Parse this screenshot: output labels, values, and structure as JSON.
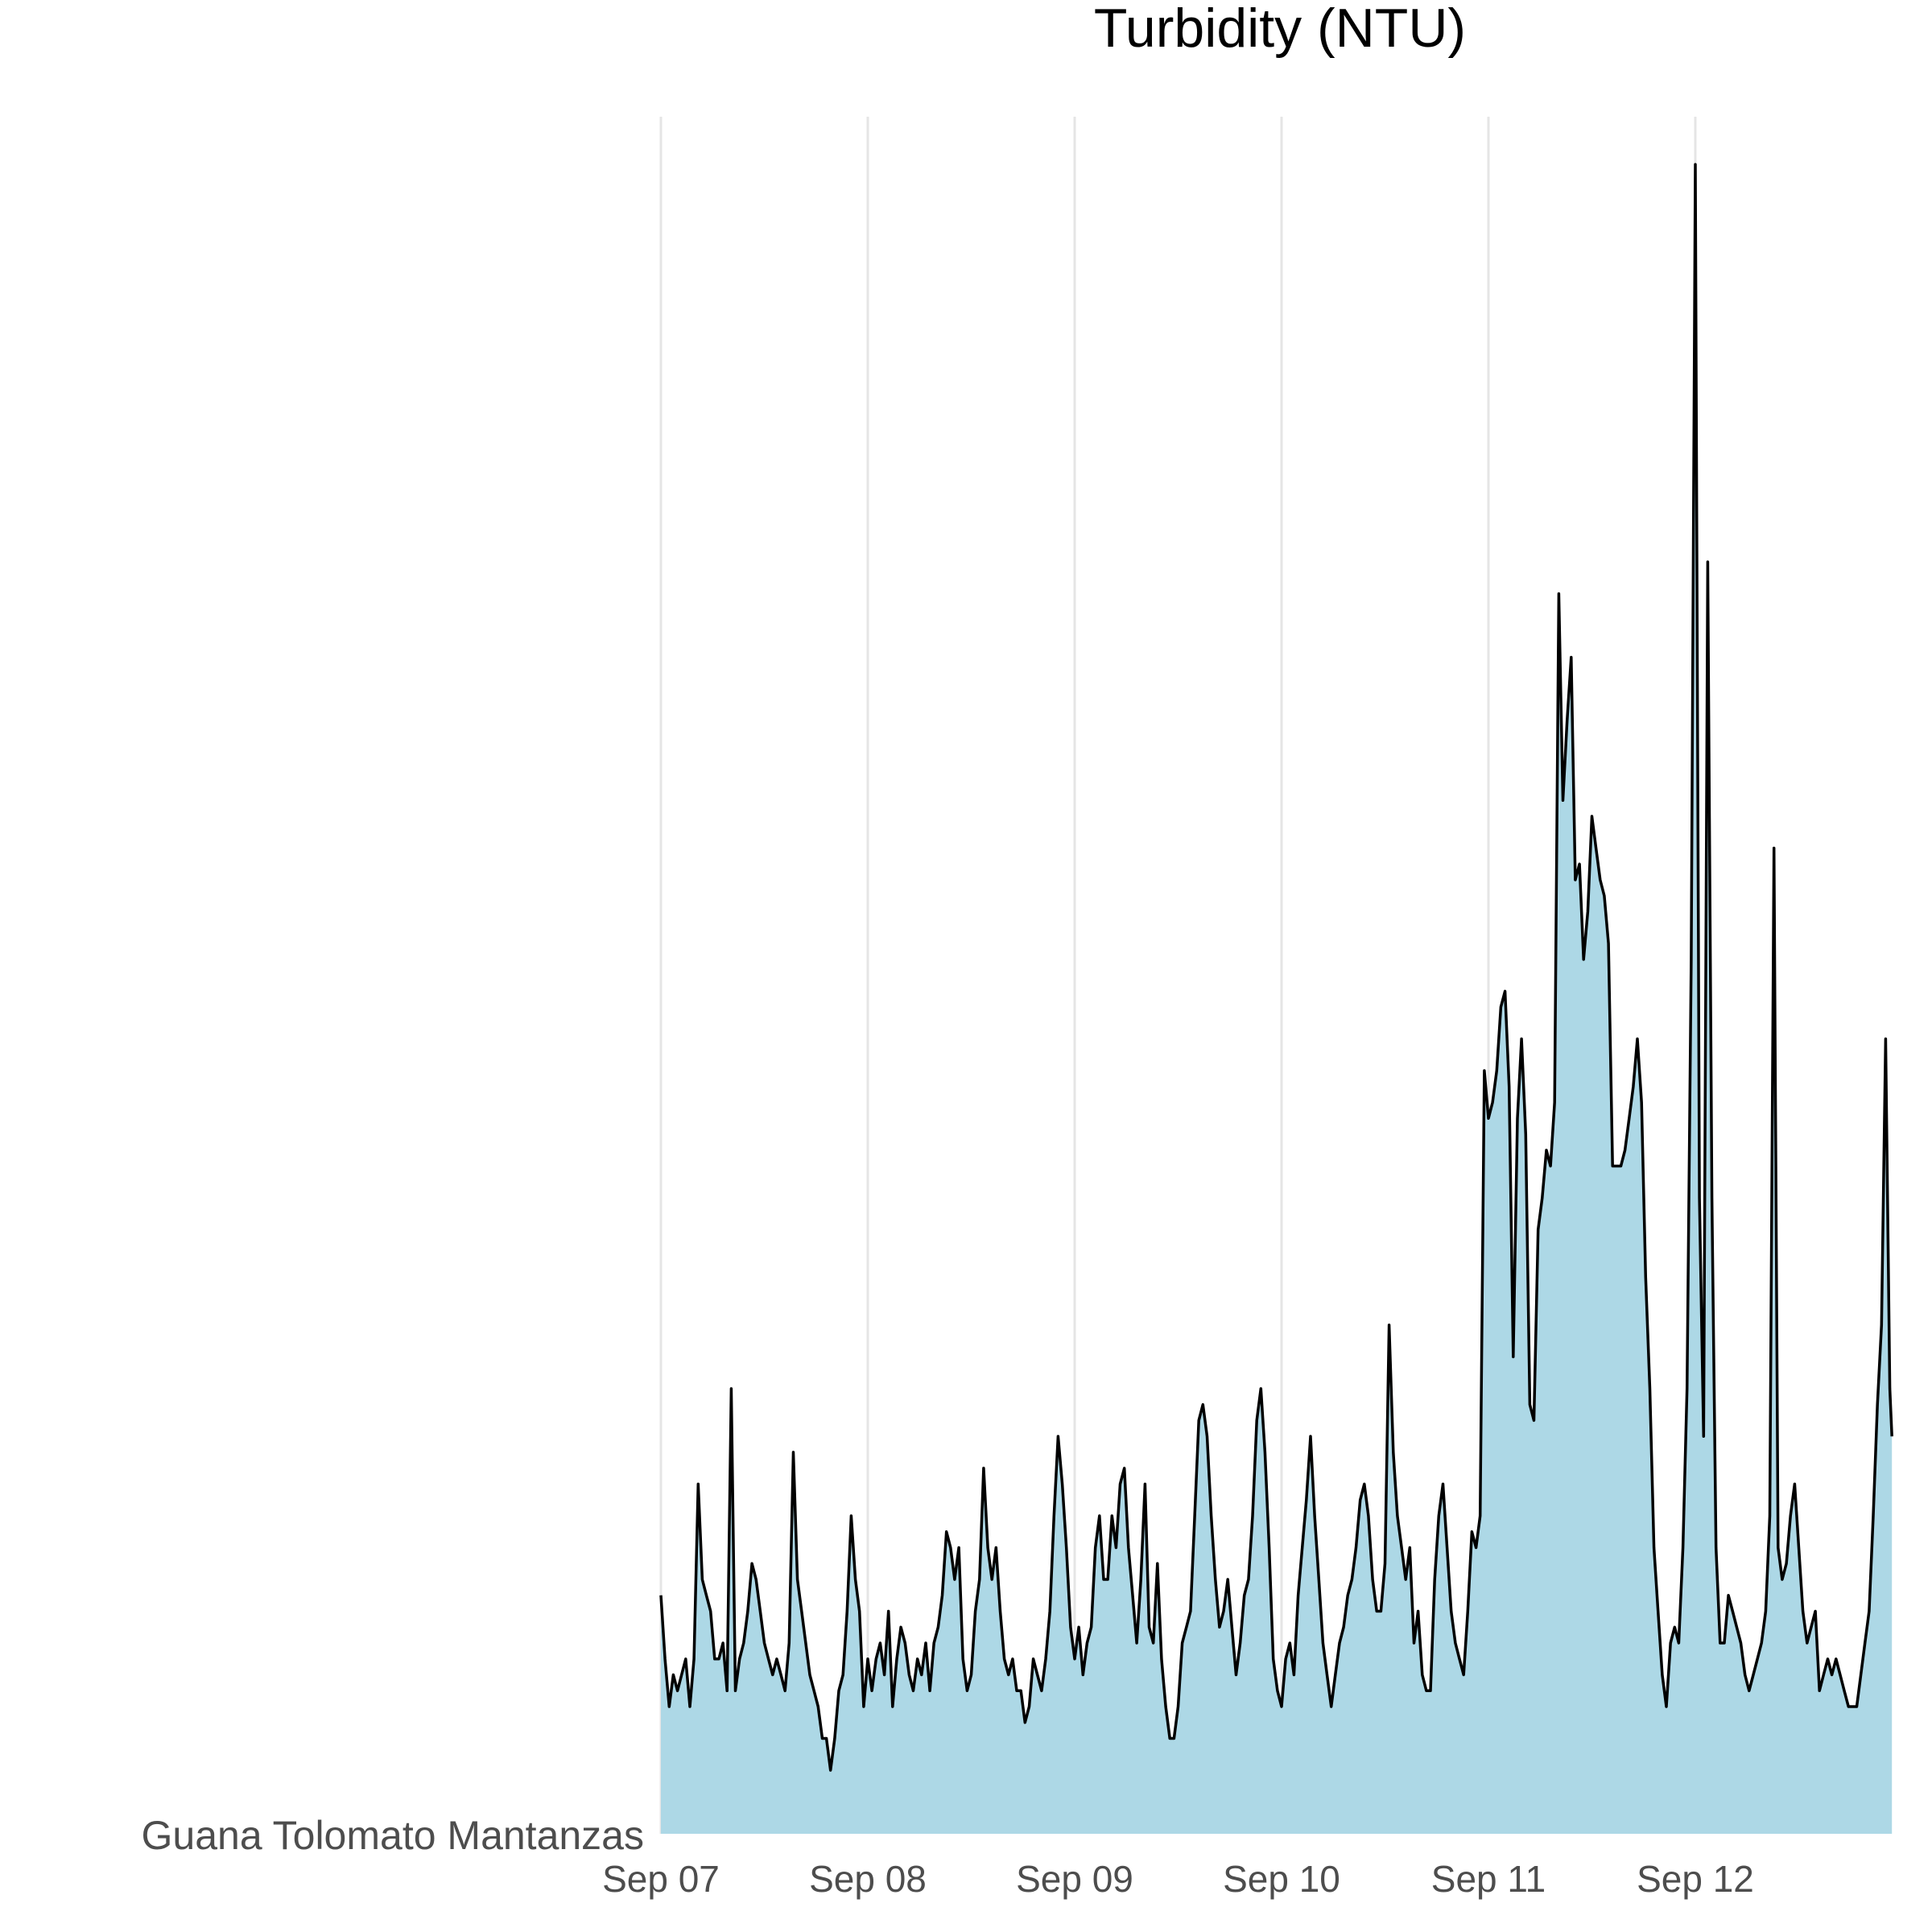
{
  "chart_data": {
    "type": "area",
    "title": "Turbidity (NTU)",
    "xlabel": "",
    "ylabel": "",
    "row_label": "Guana Tolomato Mantanzas",
    "x_tick_labels": [
      "Sep 07",
      "Sep 08",
      "Sep 09",
      "Sep 10",
      "Sep 11",
      "Sep 12"
    ],
    "x_tick_positions": [
      0,
      1,
      2,
      3,
      4,
      5
    ],
    "xlim": [
      0,
      5.95
    ],
    "ylim": [
      0,
      108
    ],
    "grid": {
      "vertical": true,
      "horizontal": false
    },
    "fill_color": "#add8e6",
    "line_color": "#000000",
    "series": [
      {
        "x": [
          0.0,
          0.02,
          0.04,
          0.06,
          0.08,
          0.1,
          0.12,
          0.14,
          0.16,
          0.18,
          0.2,
          0.22,
          0.24,
          0.26,
          0.28,
          0.3,
          0.32,
          0.34,
          0.36,
          0.38,
          0.4,
          0.42,
          0.44,
          0.46,
          0.48,
          0.5,
          0.52,
          0.54,
          0.56,
          0.58,
          0.6,
          0.62,
          0.64,
          0.66,
          0.68,
          0.7,
          0.72,
          0.74,
          0.76,
          0.78,
          0.8,
          0.82,
          0.84,
          0.86,
          0.88,
          0.9,
          0.92,
          0.94,
          0.96,
          0.98,
          1.0,
          1.02,
          1.04,
          1.06,
          1.08,
          1.1,
          1.12,
          1.14,
          1.16,
          1.18,
          1.2,
          1.22,
          1.24,
          1.26,
          1.28,
          1.3,
          1.32,
          1.34,
          1.36,
          1.38,
          1.4,
          1.42,
          1.44,
          1.46,
          1.48,
          1.5,
          1.52,
          1.54,
          1.56,
          1.58,
          1.6,
          1.62,
          1.64,
          1.66,
          1.68,
          1.7,
          1.72,
          1.74,
          1.76,
          1.78,
          1.8,
          1.82,
          1.84,
          1.86,
          1.88,
          1.9,
          1.92,
          1.94,
          1.96,
          1.98,
          2.0,
          2.02,
          2.04,
          2.06,
          2.08,
          2.1,
          2.12,
          2.14,
          2.16,
          2.18,
          2.2,
          2.22,
          2.24,
          2.26,
          2.28,
          2.3,
          2.32,
          2.34,
          2.36,
          2.38,
          2.4,
          2.42,
          2.44,
          2.46,
          2.48,
          2.5,
          2.52,
          2.54,
          2.56,
          2.58,
          2.6,
          2.62,
          2.64,
          2.66,
          2.68,
          2.7,
          2.72,
          2.74,
          2.76,
          2.78,
          2.8,
          2.82,
          2.84,
          2.86,
          2.88,
          2.9,
          2.92,
          2.94,
          2.96,
          2.98,
          3.0,
          3.02,
          3.04,
          3.06,
          3.08,
          3.1,
          3.12,
          3.14,
          3.16,
          3.18,
          3.2,
          3.22,
          3.24,
          3.26,
          3.28,
          3.3,
          3.32,
          3.34,
          3.36,
          3.38,
          3.4,
          3.42,
          3.44,
          3.46,
          3.48,
          3.5,
          3.52,
          3.54,
          3.56,
          3.58,
          3.6,
          3.62,
          3.64,
          3.66,
          3.68,
          3.7,
          3.72,
          3.74,
          3.76,
          3.78,
          3.8,
          3.82,
          3.84,
          3.86,
          3.88,
          3.9,
          3.92,
          3.94,
          3.96,
          3.98,
          4.0,
          4.02,
          4.04,
          4.06,
          4.08,
          4.1,
          4.12,
          4.14,
          4.16,
          4.18,
          4.2,
          4.22,
          4.24,
          4.26,
          4.28,
          4.3,
          4.32,
          4.34,
          4.36,
          4.38,
          4.4,
          4.42,
          4.44,
          4.46,
          4.48,
          4.5,
          4.52,
          4.54,
          4.56,
          4.58,
          4.6,
          4.62,
          4.64,
          4.66,
          4.68,
          4.7,
          4.72,
          4.74,
          4.76,
          4.78,
          4.8,
          4.82,
          4.84,
          4.86,
          4.88,
          4.9,
          4.92,
          4.94,
          4.96,
          4.98,
          5.0,
          5.02,
          5.04,
          5.06,
          5.08,
          5.1,
          5.12,
          5.14,
          5.16,
          5.18,
          5.2,
          5.22,
          5.24,
          5.26,
          5.28,
          5.3,
          5.32,
          5.34,
          5.36,
          5.38,
          5.4,
          5.42,
          5.44,
          5.46,
          5.48,
          5.5,
          5.52,
          5.54,
          5.56,
          5.58,
          5.6,
          5.62,
          5.64,
          5.66,
          5.68,
          5.7,
          5.72,
          5.74,
          5.76,
          5.78,
          5.8,
          5.82,
          5.84,
          5.86,
          5.88,
          5.9,
          5.92,
          5.94,
          5.95
        ],
        "y": [
          15,
          11,
          8,
          10,
          9,
          10,
          11,
          8,
          11,
          22,
          16,
          15,
          14,
          11,
          11,
          12,
          9,
          28,
          9,
          11,
          12,
          14,
          17,
          16,
          14,
          12,
          11,
          10,
          11,
          10,
          9,
          12,
          24,
          16,
          14,
          12,
          10,
          9,
          8,
          6,
          6,
          4,
          6,
          9,
          10,
          14,
          20,
          16,
          14,
          8,
          11,
          9,
          11,
          12,
          10,
          14,
          8,
          11,
          13,
          12,
          10,
          9,
          11,
          10,
          12,
          9,
          12,
          13,
          15,
          19,
          18,
          16,
          18,
          11,
          9,
          10,
          14,
          16,
          23,
          18,
          16,
          18,
          14,
          11,
          10,
          11,
          9,
          9,
          7,
          8,
          11,
          10,
          9,
          11,
          14,
          20,
          25,
          22,
          18,
          13,
          11,
          13,
          10,
          12,
          13,
          18,
          20,
          16,
          16,
          20,
          18,
          22,
          23,
          18,
          15,
          12,
          16,
          22,
          13,
          12,
          17,
          11,
          8,
          6,
          6,
          8,
          12,
          13,
          14,
          20,
          26,
          27,
          25,
          20,
          16,
          13,
          14,
          16,
          13,
          10,
          12,
          15,
          16,
          20,
          26,
          28,
          24,
          18,
          11,
          9,
          8,
          11,
          12,
          10,
          15,
          18,
          21,
          25,
          20,
          16,
          12,
          10,
          8,
          10,
          12,
          13,
          15,
          16,
          18,
          21,
          22,
          20,
          16,
          14,
          14,
          17,
          32,
          24,
          20,
          18,
          16,
          18,
          12,
          14,
          10,
          9,
          9,
          16,
          20,
          22,
          18,
          14,
          12,
          11,
          10,
          14,
          19,
          18,
          20,
          48,
          45,
          46,
          48,
          52,
          53,
          47,
          30,
          45,
          50,
          44,
          27,
          26,
          38,
          40,
          43,
          42,
          46,
          78,
          65,
          70,
          74,
          60,
          61,
          55,
          58,
          64,
          62,
          60,
          59,
          56,
          42,
          42,
          42,
          43,
          45,
          47,
          50,
          46,
          35,
          28,
          18,
          14,
          10,
          8,
          12,
          13,
          12,
          18,
          28,
          55,
          105,
          40,
          25,
          80,
          40,
          18,
          12,
          12,
          15,
          14,
          13,
          12,
          10,
          9,
          10,
          11,
          12,
          14,
          20,
          62,
          18,
          16,
          17,
          20,
          22,
          18,
          14,
          12,
          13,
          14,
          9,
          10,
          11,
          10,
          11,
          10,
          9,
          8,
          8,
          8,
          10,
          12,
          14,
          20,
          27,
          32,
          50,
          28,
          25
        ]
      }
    ]
  }
}
